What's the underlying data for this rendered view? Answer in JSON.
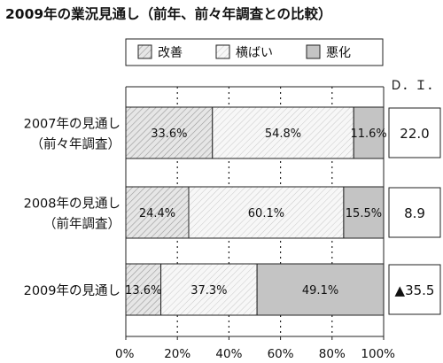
{
  "chart_data": {
    "type": "bar",
    "stacked": true,
    "orientation": "horizontal",
    "title": "2009年の業況見通し（前年、前々年調査との比較）",
    "legend": [
      "改善",
      "横ばい",
      "悪化"
    ],
    "legend_position": "top",
    "categories": [
      [
        "2007年の見通し",
        "（前々年調査）"
      ],
      [
        "2008年の見通し",
        "（前年調査）"
      ],
      [
        "2009年の見通し"
      ]
    ],
    "series": [
      {
        "name": "改善",
        "values": [
          33.6,
          24.4,
          13.6
        ],
        "labels": [
          "33.6%",
          "24.4%",
          "13.6%"
        ]
      },
      {
        "name": "横ばい",
        "values": [
          54.8,
          60.1,
          37.3
        ],
        "labels": [
          "54.8%",
          "60.1%",
          "37.3%"
        ]
      },
      {
        "name": "悪化",
        "values": [
          11.6,
          15.5,
          49.1
        ],
        "labels": [
          "11.6%",
          "15.5%",
          "49.1%"
        ]
      }
    ],
    "xlim": [
      0,
      100
    ],
    "x_ticks": [
      0,
      20,
      40,
      60,
      80,
      100
    ],
    "x_tick_labels": [
      "0%",
      "20%",
      "40%",
      "60%",
      "80%",
      "100%"
    ],
    "grid": true,
    "di_header": "Ｄ．Ｉ．",
    "di_values": [
      "22.0",
      "8.9",
      "▲35.5"
    ]
  }
}
